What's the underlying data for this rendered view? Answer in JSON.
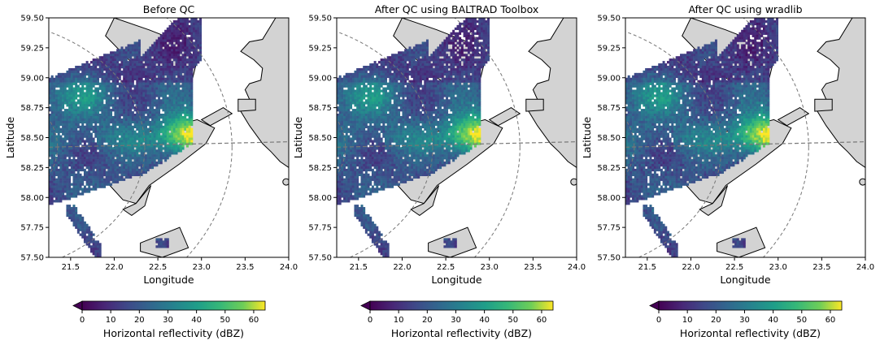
{
  "chart_data": [
    {
      "type": "heatmap",
      "title": "Before QC",
      "xlabel": "Longitude",
      "ylabel": "Latitude",
      "xlim": [
        21.25,
        24.0
      ],
      "ylim": [
        57.5,
        59.5
      ],
      "xticks": [
        "21.5",
        "22.0",
        "22.5",
        "23.0",
        "23.5",
        "24.0"
      ],
      "yticks": [
        "57.50",
        "57.75",
        "58.00",
        "58.25",
        "58.50",
        "58.75",
        "59.00",
        "59.25",
        "59.50"
      ],
      "colorbar": {
        "label": "Horizontal reflectivity (dBZ)",
        "min": 0,
        "max": 64,
        "extend": "min",
        "ticks": [
          "0",
          "10",
          "20",
          "30",
          "40",
          "50",
          "60"
        ],
        "colormap": "viridis"
      },
      "land_color": "#d3d3d3",
      "range_rings": true
    },
    {
      "type": "heatmap",
      "title": "After QC using BALTRAD Toolbox",
      "xlabel": "Longitude",
      "ylabel": "Latitude",
      "xlim": [
        21.25,
        24.0
      ],
      "ylim": [
        57.5,
        59.5
      ],
      "xticks": [
        "21.5",
        "22.0",
        "22.5",
        "23.0",
        "23.5",
        "24.0"
      ],
      "yticks": [
        "57.50",
        "57.75",
        "58.00",
        "58.25",
        "58.50",
        "58.75",
        "59.00",
        "59.25",
        "59.50"
      ],
      "colorbar": {
        "label": "Horizontal reflectivity (dBZ)",
        "min": 0,
        "max": 64,
        "extend": "min",
        "ticks": [
          "0",
          "10",
          "20",
          "30",
          "40",
          "50",
          "60"
        ],
        "colormap": "viridis"
      },
      "land_color": "#d3d3d3",
      "range_rings": true
    },
    {
      "type": "heatmap",
      "title": "After QC using wradlib",
      "xlabel": "Longitude",
      "ylabel": "Latitude",
      "xlim": [
        21.25,
        24.0
      ],
      "ylim": [
        57.5,
        59.5
      ],
      "xticks": [
        "21.5",
        "22.0",
        "22.5",
        "23.0",
        "23.5",
        "24.0"
      ],
      "yticks": [
        "57.50",
        "57.75",
        "58.00",
        "58.25",
        "58.50",
        "58.75",
        "59.00",
        "59.25",
        "59.50"
      ],
      "colorbar": {
        "label": "Horizontal reflectivity (dBZ)",
        "min": 0,
        "max": 64,
        "extend": "min",
        "ticks": [
          "0",
          "10",
          "20",
          "30",
          "40",
          "50",
          "60"
        ],
        "colormap": "viridis"
      },
      "land_color": "#d3d3d3",
      "range_rings": true
    }
  ]
}
